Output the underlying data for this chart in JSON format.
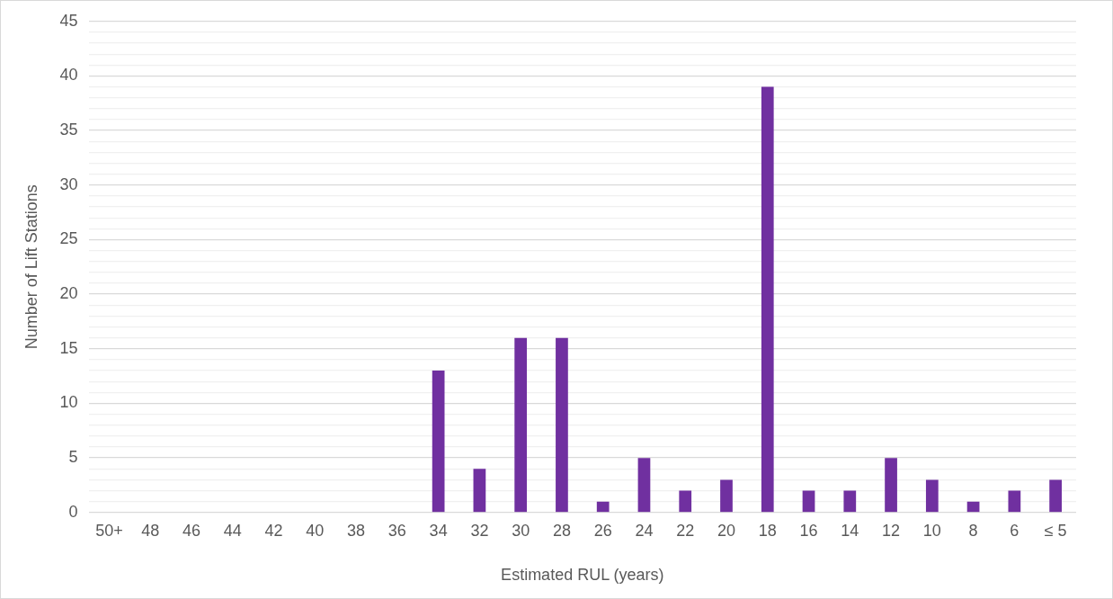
{
  "chart_data": {
    "type": "bar",
    "xlabel": "Estimated RUL (years)",
    "ylabel": "Number of Lift Stations",
    "categories": [
      "50+",
      "48",
      "46",
      "44",
      "42",
      "40",
      "38",
      "36",
      "34",
      "32",
      "30",
      "28",
      "26",
      "24",
      "22",
      "20",
      "18",
      "16",
      "14",
      "12",
      "10",
      "8",
      "6",
      "≤ 5"
    ],
    "values": [
      0,
      0,
      0,
      0,
      0,
      0,
      0,
      0,
      13,
      4,
      16,
      16,
      1,
      5,
      2,
      3,
      39,
      2,
      2,
      5,
      3,
      1,
      2,
      3
    ],
    "color": "#7030a0",
    "ylim": [
      0,
      45
    ],
    "yticks": [
      0,
      {
        "value": 1,
        "label": null
      },
      {
        "value": 2,
        "label": null
      },
      {
        "value": 3,
        "label": null
      },
      {
        "value": 4,
        "label": null
      },
      5,
      {
        "value": 6,
        "label": null
      },
      {
        "value": 7,
        "label": null
      },
      {
        "value": 8,
        "label": null
      },
      {
        "value": 9,
        "label": null
      },
      10,
      {
        "value": 11,
        "label": null
      },
      {
        "value": 12,
        "label": null
      },
      {
        "value": 13,
        "label": null
      },
      {
        "value": 14,
        "label": null
      },
      15,
      {
        "value": 16,
        "label": null
      },
      {
        "value": 17,
        "label": null
      },
      {
        "value": 18,
        "label": null
      },
      {
        "value": 19,
        "label": null
      },
      20,
      {
        "value": 21,
        "label": null
      },
      {
        "value": 22,
        "label": null
      },
      {
        "value": 23,
        "label": null
      },
      {
        "value": 24,
        "label": null
      },
      25,
      {
        "value": 26,
        "label": null
      },
      {
        "value": 27,
        "label": null
      },
      {
        "value": 28,
        "label": null
      },
      {
        "value": 29,
        "label": null
      },
      30,
      {
        "value": 31,
        "label": null
      },
      {
        "value": 32,
        "label": null
      },
      {
        "value": 33,
        "label": null
      },
      {
        "value": 34,
        "label": null
      },
      35,
      {
        "value": 36,
        "label": null
      },
      {
        "value": 37,
        "label": null
      },
      {
        "value": 38,
        "label": null
      },
      {
        "value": 39,
        "label": null
      },
      40,
      {
        "value": 41,
        "label": null
      },
      {
        "value": 42,
        "label": null
      },
      {
        "value": 43,
        "label": null
      },
      {
        "value": 44,
        "label": null
      },
      45
    ],
    "grid": "y",
    "legend": false
  }
}
